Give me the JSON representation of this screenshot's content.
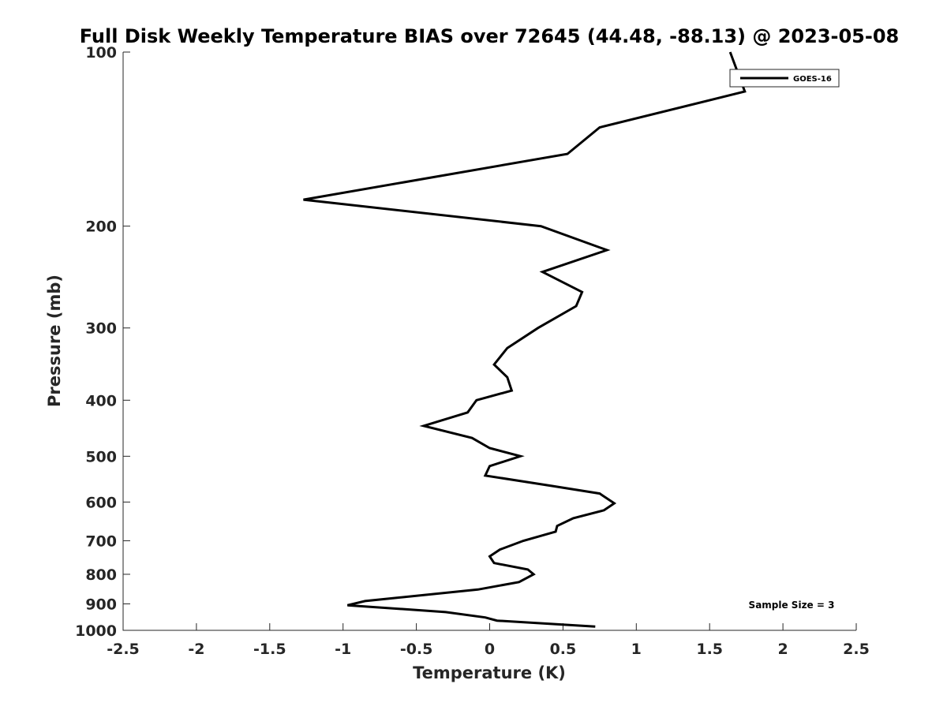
{
  "chart_data": {
    "type": "line",
    "title": "Full Disk Weekly Temperature BIAS over 72645 (44.48, -88.13) @ 2023-05-08",
    "xlabel": "Temperature (K)",
    "ylabel": "Pressure (mb)",
    "xlim": [
      -2.5,
      2.5
    ],
    "ylim": [
      100,
      1000
    ],
    "y_scale": "log",
    "y_reversed": true,
    "x_ticks": [
      -2.5,
      -2,
      -1.5,
      -1,
      -0.5,
      0,
      0.5,
      1,
      1.5,
      2,
      2.5
    ],
    "x_tick_labels": [
      "-2.5",
      "-2",
      "-1.5",
      "-1",
      "-0.5",
      "0",
      "0.5",
      "1",
      "1.5",
      "2",
      "2.5"
    ],
    "y_ticks": [
      100,
      200,
      300,
      400,
      500,
      600,
      700,
      800,
      900,
      1000
    ],
    "y_tick_labels": [
      "100",
      "200",
      "300",
      "400",
      "500",
      "600",
      "700",
      "800",
      "900",
      "1000"
    ],
    "grid": false,
    "legend_position": "top-right",
    "series": [
      {
        "name": "GOES-16",
        "color": "#000000",
        "points": [
          {
            "x": 1.64,
            "y": 100
          },
          {
            "x": 1.74,
            "y": 117
          },
          {
            "x": 0.75,
            "y": 135
          },
          {
            "x": 0.53,
            "y": 150
          },
          {
            "x": -1.27,
            "y": 180
          },
          {
            "x": 0.35,
            "y": 200
          },
          {
            "x": 0.8,
            "y": 220
          },
          {
            "x": 0.36,
            "y": 240
          },
          {
            "x": 0.63,
            "y": 260
          },
          {
            "x": 0.59,
            "y": 275
          },
          {
            "x": 0.33,
            "y": 300
          },
          {
            "x": 0.12,
            "y": 325
          },
          {
            "x": 0.03,
            "y": 347
          },
          {
            "x": 0.12,
            "y": 365
          },
          {
            "x": 0.15,
            "y": 385
          },
          {
            "x": -0.09,
            "y": 400
          },
          {
            "x": -0.15,
            "y": 420
          },
          {
            "x": -0.45,
            "y": 443
          },
          {
            "x": -0.12,
            "y": 465
          },
          {
            "x": 0.0,
            "y": 484
          },
          {
            "x": 0.21,
            "y": 500
          },
          {
            "x": 0.0,
            "y": 520
          },
          {
            "x": -0.03,
            "y": 540
          },
          {
            "x": 0.43,
            "y": 563
          },
          {
            "x": 0.75,
            "y": 580
          },
          {
            "x": 0.85,
            "y": 603
          },
          {
            "x": 0.78,
            "y": 620
          },
          {
            "x": 0.57,
            "y": 640
          },
          {
            "x": 0.46,
            "y": 660
          },
          {
            "x": 0.45,
            "y": 675
          },
          {
            "x": 0.23,
            "y": 700
          },
          {
            "x": 0.07,
            "y": 725
          },
          {
            "x": 0.0,
            "y": 745
          },
          {
            "x": 0.03,
            "y": 765
          },
          {
            "x": 0.26,
            "y": 785
          },
          {
            "x": 0.3,
            "y": 800
          },
          {
            "x": 0.2,
            "y": 825
          },
          {
            "x": -0.08,
            "y": 850
          },
          {
            "x": -0.85,
            "y": 890
          },
          {
            "x": -0.97,
            "y": 905
          },
          {
            "x": -0.3,
            "y": 930
          },
          {
            "x": -0.03,
            "y": 950
          },
          {
            "x": 0.05,
            "y": 962
          },
          {
            "x": 0.72,
            "y": 985
          }
        ]
      }
    ],
    "annotations": [
      {
        "text": "Sample Size = 3",
        "position": "bottom-right"
      }
    ]
  }
}
